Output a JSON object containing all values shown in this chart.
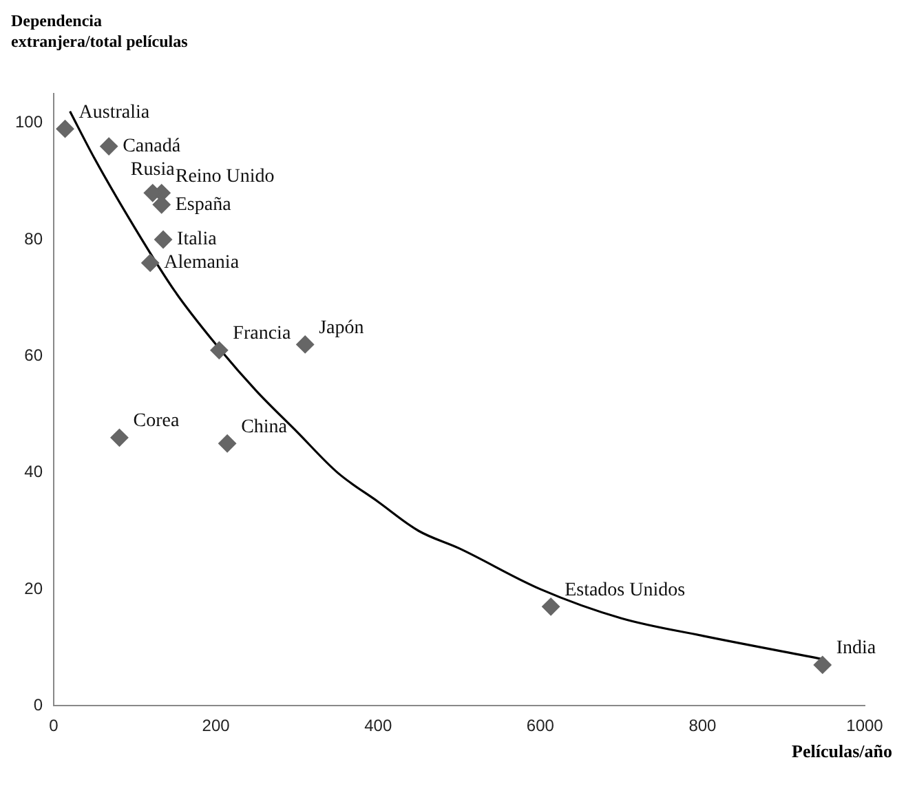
{
  "chart_data": {
    "type": "scatter",
    "ylabel": "Dependencia\nextranjera/total películas",
    "xlabel": "Películas/año",
    "xlim": [
      0,
      1000
    ],
    "xticks": [
      0,
      200,
      400,
      600,
      800,
      1000
    ],
    "ylim": [
      0,
      105
    ],
    "yticks": [
      0,
      20,
      40,
      60,
      80,
      100
    ],
    "grid": false,
    "legend": false,
    "marker": "diamond",
    "series": [
      {
        "type": "scatter",
        "color": "#666666",
        "x": [
          14,
          68,
          133,
          122,
          133,
          135,
          119,
          204,
          310,
          81,
          214,
          613,
          948
        ],
        "values": [
          99,
          96,
          88,
          88,
          86,
          80,
          76,
          61,
          62,
          46,
          45,
          17,
          7
        ]
      },
      {
        "type": "line",
        "color": "#000000",
        "line_style": "solid",
        "marker": "none",
        "x": [
          20,
          50,
          100,
          150,
          200,
          250,
          300,
          350,
          400,
          450,
          500,
          600,
          700,
          800,
          948
        ],
        "values": [
          102,
          94,
          82,
          71,
          62,
          54,
          47,
          40,
          35,
          30,
          27,
          20,
          15,
          12,
          8
        ]
      }
    ],
    "annotations": [
      {
        "text": "Australia",
        "x": 14,
        "y": 99
      },
      {
        "text": "Canadá",
        "x": 68,
        "y": 96
      },
      {
        "text": "Reino Unido",
        "x": 133,
        "y": 88
      },
      {
        "text": "Rusia",
        "x": 122,
        "y": 88
      },
      {
        "text": "España",
        "x": 133,
        "y": 86
      },
      {
        "text": "Italia",
        "x": 135,
        "y": 80
      },
      {
        "text": "Alemania",
        "x": 119,
        "y": 76
      },
      {
        "text": "Francia",
        "x": 204,
        "y": 61
      },
      {
        "text": "Japón",
        "x": 310,
        "y": 62
      },
      {
        "text": "Corea",
        "x": 81,
        "y": 46
      },
      {
        "text": "China",
        "x": 214,
        "y": 45
      },
      {
        "text": "Estados Unidos",
        "x": 613,
        "y": 17
      },
      {
        "text": "India",
        "x": 948,
        "y": 7
      }
    ]
  }
}
